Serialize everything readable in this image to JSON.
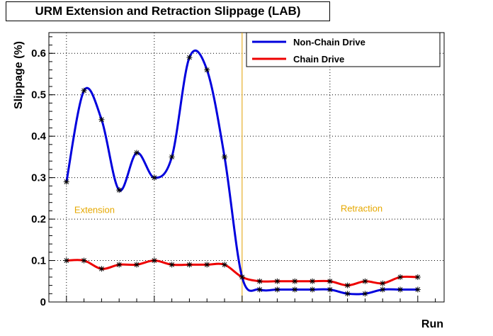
{
  "chart_data": {
    "type": "line",
    "title": "URM Extension and Retraction Slippage (LAB)",
    "xlabel": "Run",
    "ylabel": "Slippage (%)",
    "xlim": [
      -1,
      21.5
    ],
    "ylim": [
      0,
      0.65
    ],
    "y_ticks": [
      "0",
      "0.1",
      "0.2",
      "0.3",
      "0.4",
      "0.5",
      "0.6"
    ],
    "y_tick_values": [
      0,
      0.1,
      0.2,
      0.3,
      0.4,
      0.5,
      0.6
    ],
    "grid": true,
    "legend_position": "top-right",
    "divider_x": 10,
    "colors": {
      "divider": "#e0a000",
      "annotation": "#e6a800"
    },
    "annotations": [
      {
        "text": "Extension",
        "x": 1.6,
        "y": 0.215
      },
      {
        "text": "Retraction",
        "x": 16.8,
        "y": 0.218
      }
    ],
    "series": [
      {
        "name": "Non-Chain Drive",
        "color": "#0000dd",
        "x": [
          0,
          1,
          2,
          3,
          4,
          5,
          6,
          7,
          8,
          9,
          10,
          11,
          12,
          13,
          14,
          15,
          16,
          17,
          18,
          19,
          20
        ],
        "values": [
          0.29,
          0.51,
          0.44,
          0.27,
          0.36,
          0.3,
          0.35,
          0.59,
          0.56,
          0.35,
          0.06,
          0.03,
          0.03,
          0.03,
          0.03,
          0.03,
          0.02,
          0.02,
          0.03,
          0.03,
          0.03
        ]
      },
      {
        "name": "Chain Drive",
        "color": "#ee0000",
        "x": [
          0,
          1,
          2,
          3,
          4,
          5,
          6,
          7,
          8,
          9,
          10,
          11,
          12,
          13,
          14,
          15,
          16,
          17,
          18,
          19,
          20
        ],
        "values": [
          0.1,
          0.1,
          0.08,
          0.09,
          0.09,
          0.1,
          0.09,
          0.09,
          0.09,
          0.09,
          0.06,
          0.05,
          0.05,
          0.05,
          0.05,
          0.05,
          0.04,
          0.05,
          0.045,
          0.06,
          0.06
        ]
      }
    ]
  }
}
